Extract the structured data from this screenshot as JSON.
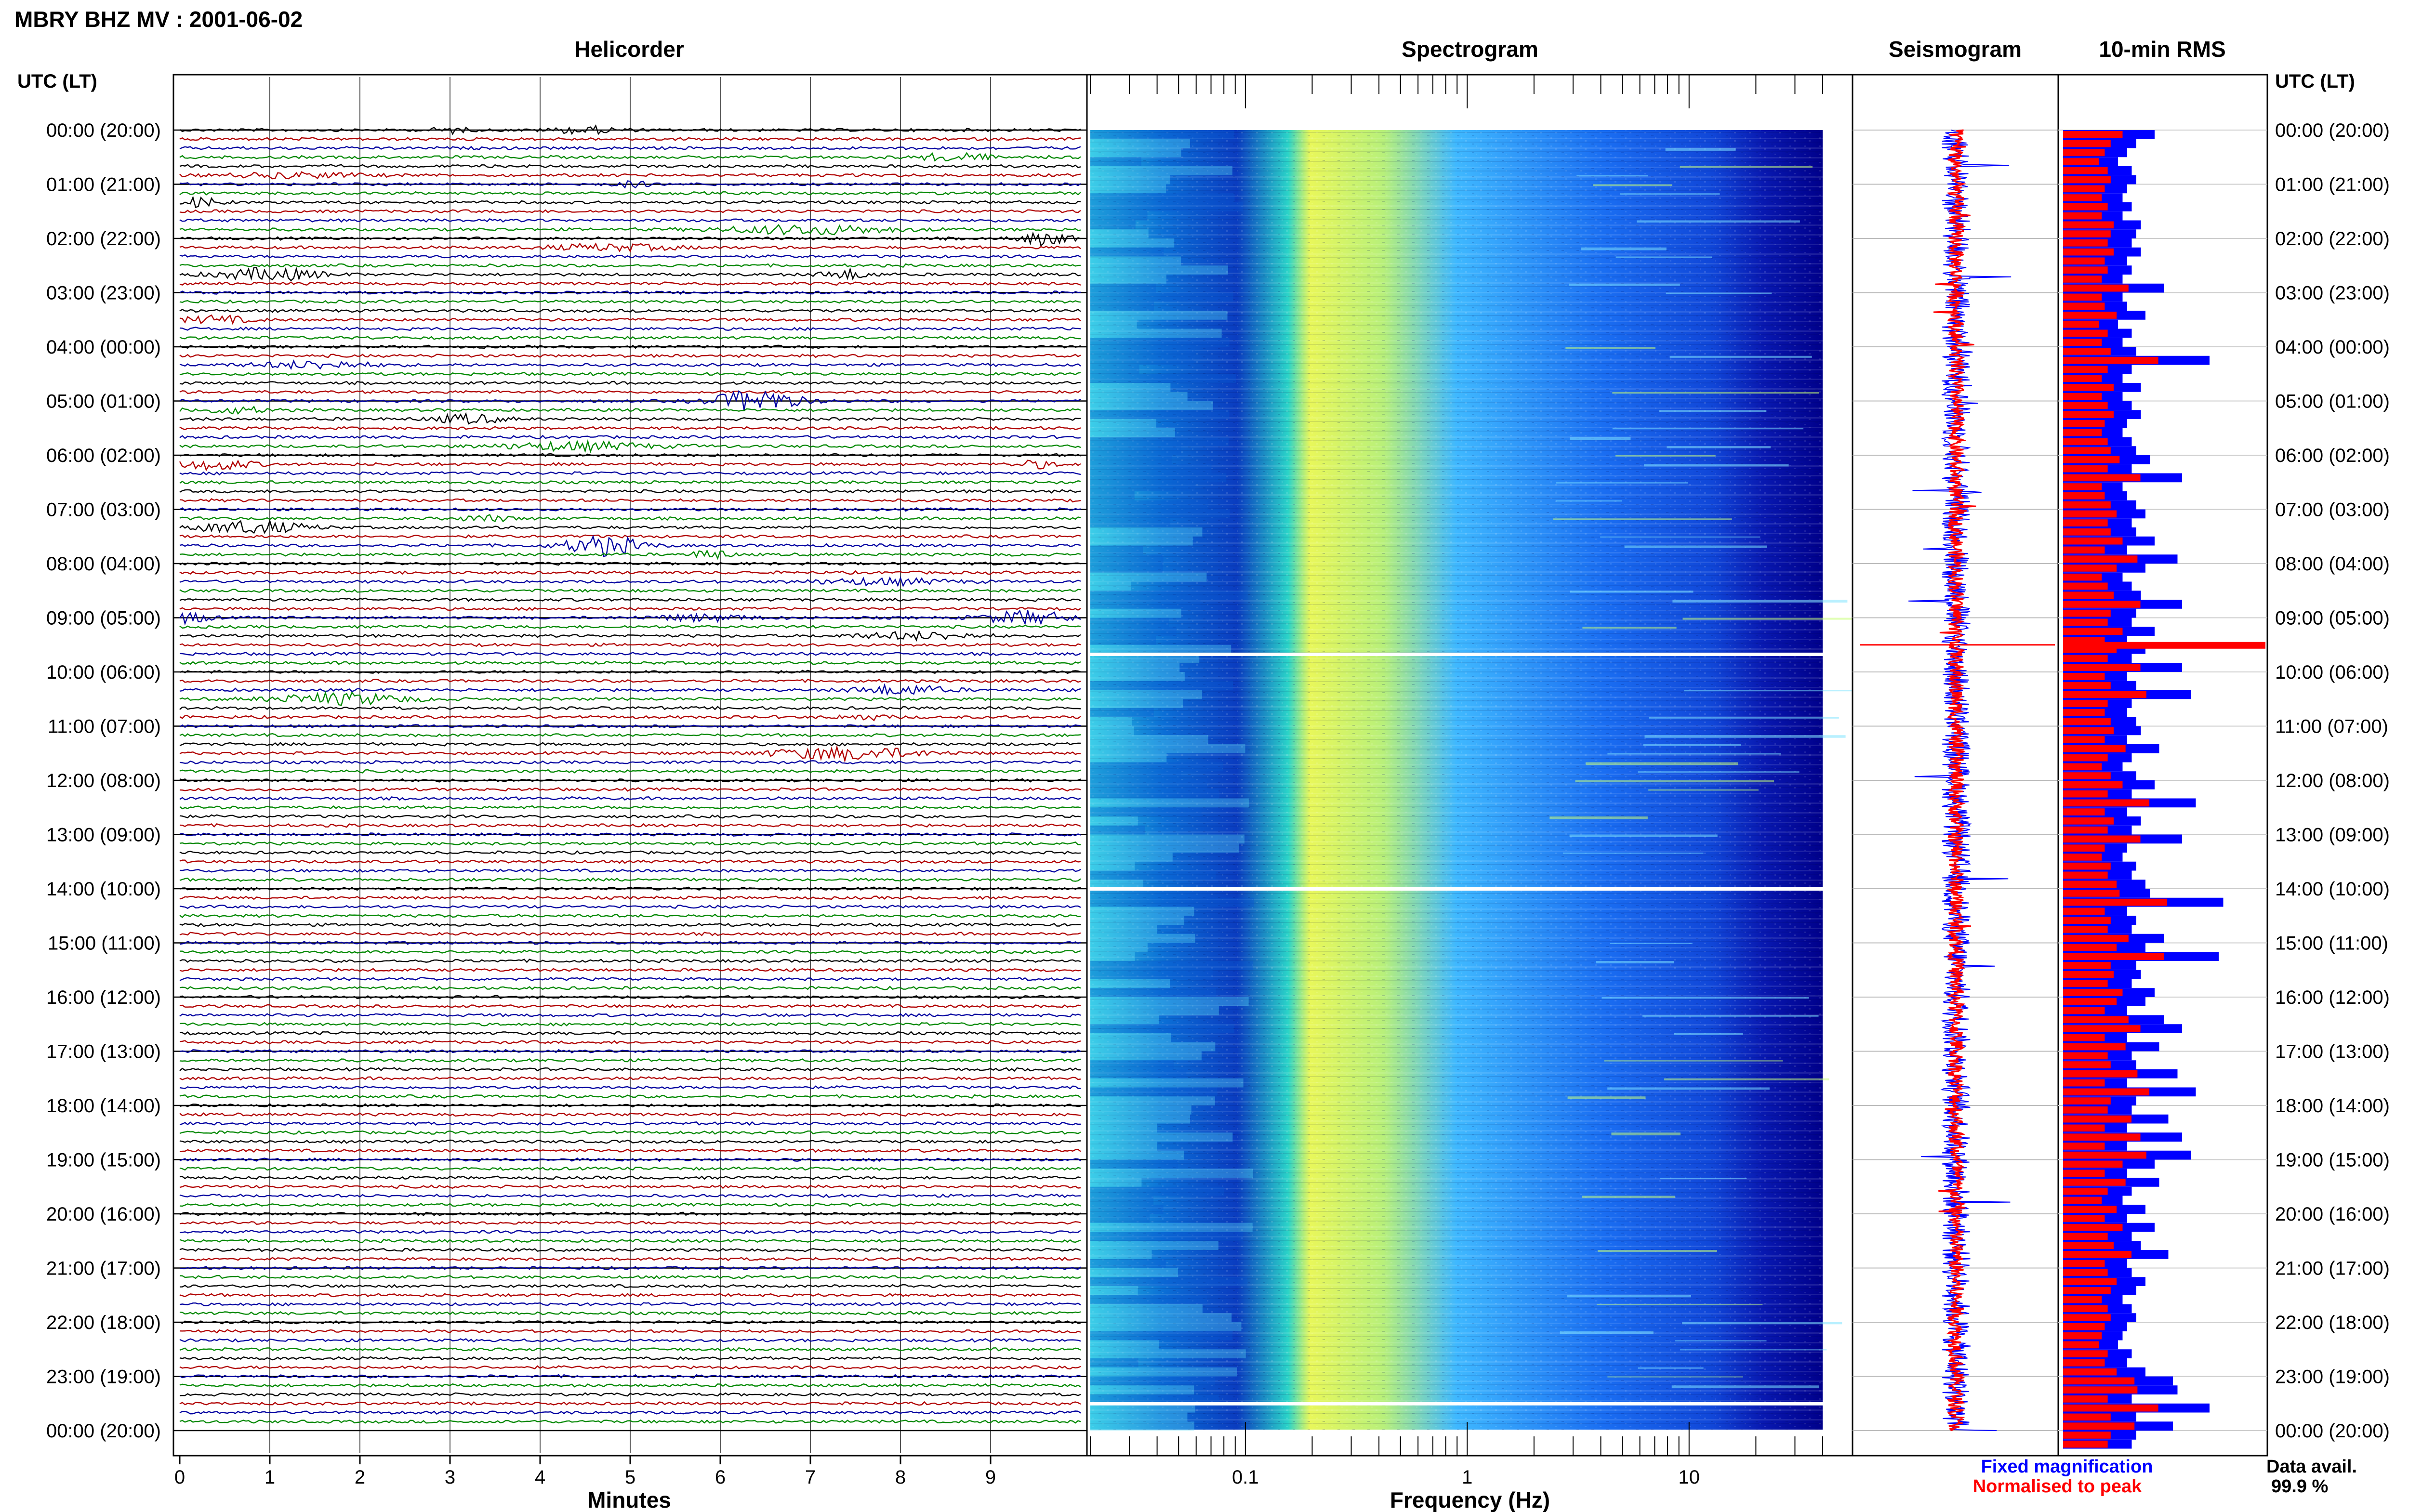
{
  "title": "MBRY BHZ MV : 2001-06-02",
  "panels": {
    "helicorder": "Helicorder",
    "spectrogram": "Spectrogram",
    "seismogram": "Seismogram",
    "rms": "10-min RMS"
  },
  "axis_labels": {
    "time_left": "UTC (LT)",
    "time_right": "UTC (LT)",
    "helicorder_x": "Minutes",
    "spectrogram_x": "Frequency (Hz)"
  },
  "legend": {
    "fixed": "Fixed magnification",
    "normalised": "Normalised to peak"
  },
  "data_avail": {
    "label": "Data avail.",
    "value": "99.9 %"
  },
  "colors": {
    "trace_cycle": [
      "#000000",
      "#b00000",
      "#0000a0",
      "#008800"
    ],
    "fixed_magnification": "#0000ff",
    "normalised_to_peak": "#ff0000",
    "spectrogram_low": "#00008b",
    "spectrogram_high": "#ffff66"
  },
  "chart_data": [
    {
      "type": "line",
      "panel": "Helicorder",
      "xlabel": "Minutes",
      "xlim": [
        0,
        10
      ],
      "x_ticks": [
        "0",
        "1",
        "2",
        "3",
        "4",
        "5",
        "6",
        "7",
        "8",
        "9"
      ],
      "rows_per_hour": 6,
      "hours": 24,
      "events": [
        {
          "row": 0,
          "minute": 3.0,
          "amp": 0.6,
          "dur": 0.4
        },
        {
          "row": 0,
          "minute": 4.5,
          "amp": 0.7,
          "dur": 0.8
        },
        {
          "row": 3,
          "minute": 8.6,
          "amp": 0.8,
          "dur": 0.8
        },
        {
          "row": 5,
          "minute": 1.3,
          "amp": 0.5,
          "dur": 1.6
        },
        {
          "row": 6,
          "minute": 5.0,
          "amp": 0.5,
          "dur": 0.5
        },
        {
          "row": 8,
          "minute": 0.2,
          "amp": 0.9,
          "dur": 0.5
        },
        {
          "row": 11,
          "minute": 7.0,
          "amp": 0.9,
          "dur": 2.0
        },
        {
          "row": 12,
          "minute": 9.6,
          "amp": 1.2,
          "dur": 0.6
        },
        {
          "row": 13,
          "minute": 4.8,
          "amp": 0.6,
          "dur": 1.6
        },
        {
          "row": 16,
          "minute": 1.0,
          "amp": 1.2,
          "dur": 1.2
        },
        {
          "row": 16,
          "minute": 7.4,
          "amp": 0.9,
          "dur": 0.6
        },
        {
          "row": 21,
          "minute": 0.4,
          "amp": 0.7,
          "dur": 0.8
        },
        {
          "row": 26,
          "minute": 1.5,
          "amp": 0.7,
          "dur": 1.4
        },
        {
          "row": 30,
          "minute": 6.4,
          "amp": 2.2,
          "dur": 1.0
        },
        {
          "row": 31,
          "minute": 0.6,
          "amp": 0.6,
          "dur": 0.8
        },
        {
          "row": 32,
          "minute": 3.2,
          "amp": 0.9,
          "dur": 0.8
        },
        {
          "row": 35,
          "minute": 4.4,
          "amp": 0.8,
          "dur": 1.8
        },
        {
          "row": 37,
          "minute": 0.4,
          "amp": 1.0,
          "dur": 0.9
        },
        {
          "row": 37,
          "minute": 9.5,
          "amp": 0.7,
          "dur": 0.5
        },
        {
          "row": 43,
          "minute": 3.4,
          "amp": 0.6,
          "dur": 0.6
        },
        {
          "row": 44,
          "minute": 0.8,
          "amp": 1.2,
          "dur": 1.3
        },
        {
          "row": 46,
          "minute": 4.7,
          "amp": 2.0,
          "dur": 0.9
        },
        {
          "row": 47,
          "minute": 5.9,
          "amp": 1.0,
          "dur": 0.4
        },
        {
          "row": 50,
          "minute": 7.8,
          "amp": 0.6,
          "dur": 1.6
        },
        {
          "row": 54,
          "minute": 9.4,
          "amp": 1.3,
          "dur": 1.0
        },
        {
          "row": 54,
          "minute": 0.1,
          "amp": 1.0,
          "dur": 0.5
        },
        {
          "row": 54,
          "minute": 5.8,
          "amp": 0.6,
          "dur": 1.2
        },
        {
          "row": 56,
          "minute": 8.2,
          "amp": 0.7,
          "dur": 1.4
        },
        {
          "row": 62,
          "minute": 8.0,
          "amp": 0.9,
          "dur": 1.1
        },
        {
          "row": 63,
          "minute": 1.8,
          "amp": 1.1,
          "dur": 1.6
        },
        {
          "row": 65,
          "minute": 7.6,
          "amp": 0.5,
          "dur": 0.6
        },
        {
          "row": 69,
          "minute": 7.4,
          "amp": 1.2,
          "dur": 1.8
        }
      ]
    },
    {
      "type": "heatmap",
      "panel": "Spectrogram",
      "xlabel": "Frequency (Hz)",
      "x_scale": "log",
      "xlim": [
        0.02,
        40
      ],
      "x_ticks": [
        "0.1",
        "1",
        "10"
      ],
      "gaps_at_hour": [
        9.67,
        14.0,
        23.5
      ]
    },
    {
      "type": "line",
      "panel": "Seismogram",
      "series": [
        {
          "name": "Fixed magnification",
          "color": "#0000ff"
        },
        {
          "name": "Normalised to peak",
          "color": "#ff0000"
        }
      ]
    },
    {
      "type": "bar",
      "panel": "10-min RMS",
      "orientation": "horizontal",
      "series": [
        {
          "name": "Fixed magnification",
          "color": "#0000ff"
        },
        {
          "name": "Normalised to peak",
          "color": "#ff0000"
        }
      ],
      "rows_per_hour": 6,
      "values_fixed": [
        1.0,
        0.8,
        0.7,
        0.6,
        0.75,
        0.8,
        0.7,
        0.65,
        0.75,
        0.65,
        0.85,
        0.8,
        0.75,
        0.85,
        0.7,
        0.75,
        0.65,
        1.1,
        0.65,
        0.7,
        0.9,
        0.6,
        0.75,
        0.65,
        0.8,
        1.6,
        0.75,
        0.65,
        0.85,
        0.65,
        0.75,
        0.85,
        0.7,
        0.65,
        0.75,
        0.8,
        0.95,
        0.75,
        1.3,
        0.65,
        0.7,
        0.8,
        0.9,
        0.75,
        0.8,
        1.0,
        0.7,
        1.25,
        0.9,
        0.65,
        0.75,
        0.85,
        1.3,
        0.8,
        0.75,
        1.0,
        0.7,
        0.9,
        0.75,
        1.3,
        0.7,
        0.8,
        1.4,
        0.75,
        0.7,
        0.8,
        0.85,
        0.7,
        1.05,
        0.75,
        0.65,
        0.8,
        1.0,
        0.75,
        1.45,
        0.7,
        0.85,
        0.75,
        1.3,
        0.7,
        0.65,
        0.8,
        0.75,
        0.9,
        0.95,
        1.75,
        0.7,
        0.8,
        0.75,
        1.1,
        0.9,
        1.7,
        0.8,
        0.85,
        0.75,
        1.0,
        0.9,
        0.7,
        1.1,
        1.3,
        0.7,
        1.05,
        0.75,
        0.8,
        1.25,
        0.7,
        1.45,
        0.8,
        0.75,
        1.15,
        0.7,
        1.3,
        0.7,
        1.4,
        1.0,
        0.7,
        1.05,
        0.75,
        0.65,
        0.9,
        0.7,
        1.0,
        0.75,
        0.85,
        1.15,
        0.7,
        0.75,
        0.9,
        0.8,
        0.65,
        0.75,
        0.8,
        0.7,
        0.65,
        0.6,
        0.75,
        0.7,
        0.9,
        1.2,
        1.25,
        0.75,
        1.6,
        0.8,
        1.2,
        0.8,
        0.75
      ],
      "values_normalised_ratio": 0.65
    }
  ]
}
